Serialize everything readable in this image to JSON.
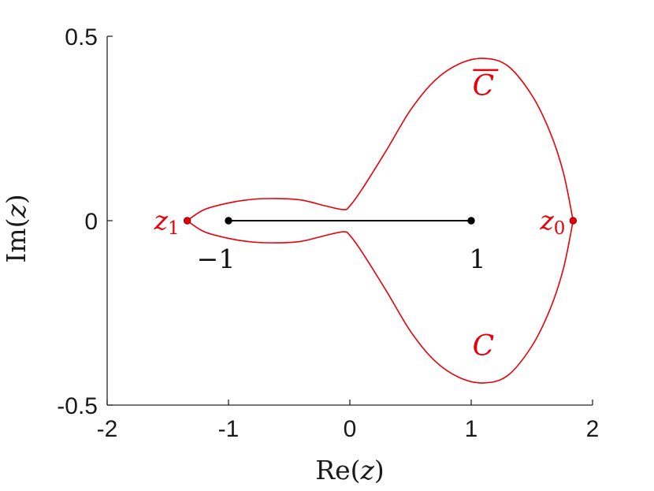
{
  "chart_data": {
    "type": "line",
    "xlabel": {
      "prefix": "Re(",
      "var": "z",
      "suffix": ")"
    },
    "ylabel": {
      "prefix": "Im(",
      "var": "z",
      "suffix": ")"
    },
    "xlim": [
      -2,
      2
    ],
    "ylim": [
      -0.5,
      0.5
    ],
    "x_ticks": [
      -2,
      -1,
      0,
      1,
      2
    ],
    "x_tick_labels": [
      "-2",
      "-1",
      "0",
      "1",
      "2"
    ],
    "y_ticks": [
      -0.5,
      0,
      0.5
    ],
    "y_tick_labels": [
      "-0.5",
      "0",
      "0.5"
    ],
    "grid": false,
    "colors": {
      "contour": "#e8000b",
      "segment": "#000000",
      "axes": "#262626"
    },
    "contour_upper": {
      "label": "C̄",
      "x": [
        -1.34,
        -1.2,
        -1.0,
        -0.8,
        -0.6,
        -0.4,
        -0.2,
        -0.05,
        0.0,
        0.1,
        0.3,
        0.5,
        0.7,
        0.9,
        1.1,
        1.3,
        1.5,
        1.65,
        1.76,
        1.84
      ],
      "y": [
        0.0,
        0.03,
        0.048,
        0.058,
        0.06,
        0.056,
        0.04,
        0.03,
        0.04,
        0.085,
        0.19,
        0.3,
        0.38,
        0.425,
        0.44,
        0.42,
        0.34,
        0.24,
        0.13,
        0.0
      ]
    },
    "contour_lower": {
      "label": "C",
      "x": [
        -1.34,
        -1.2,
        -1.0,
        -0.8,
        -0.6,
        -0.4,
        -0.2,
        -0.05,
        0.0,
        0.1,
        0.3,
        0.5,
        0.7,
        0.9,
        1.1,
        1.3,
        1.5,
        1.65,
        1.76,
        1.84
      ],
      "y": [
        0.0,
        -0.03,
        -0.048,
        -0.058,
        -0.06,
        -0.056,
        -0.04,
        -0.03,
        -0.04,
        -0.085,
        -0.19,
        -0.3,
        -0.38,
        -0.425,
        -0.44,
        -0.42,
        -0.34,
        -0.24,
        -0.13,
        0.0
      ]
    },
    "segment": {
      "x": [
        -1,
        1
      ],
      "y": [
        0,
        0
      ]
    },
    "points": [
      {
        "name": "z1",
        "x": -1.34,
        "y": 0,
        "color": "#e8000b",
        "label_var": "z",
        "label_sub": "1"
      },
      {
        "name": "z0",
        "x": 1.84,
        "y": 0,
        "color": "#e8000b",
        "label_var": "z",
        "label_sub": "0"
      },
      {
        "name": "minus-one",
        "x": -1,
        "y": 0,
        "color": "#000000"
      },
      {
        "name": "one",
        "x": 1,
        "y": 0,
        "color": "#000000"
      }
    ],
    "annotations": {
      "minus_one": "−1",
      "one": "1",
      "c_bar": "C",
      "c": "C"
    }
  }
}
